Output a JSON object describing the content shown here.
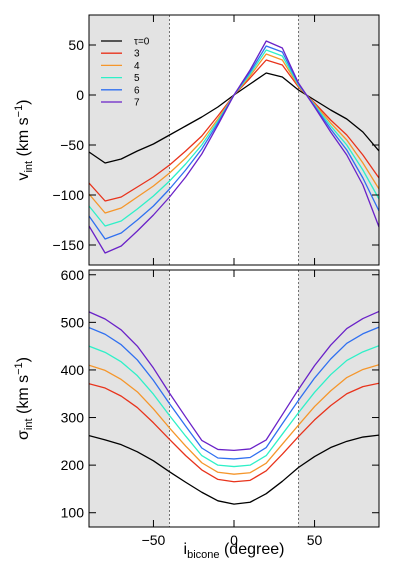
{
  "chart_data": [
    {
      "type": "line",
      "ylabel": "v",
      "ylabel_sub": "int",
      "ylabel_unit": " (km s",
      "ylabel_sup": "−1",
      "ylabel_close": ")",
      "xlim": [
        -90,
        90
      ],
      "ylim": [
        -170,
        80
      ],
      "yticks": [
        50,
        0,
        -50,
        -100,
        -150
      ],
      "ytick_labels": [
        "50",
        "0",
        "−50",
        "−100",
        "−150"
      ],
      "shade_ranges": [
        [
          -90,
          -40
        ],
        [
          40,
          90
        ]
      ],
      "dashed_x": [
        -40,
        40
      ],
      "grid": false,
      "legend_position": "top-left",
      "x": [
        -90,
        -80,
        -70,
        -60,
        -50,
        -40,
        -30,
        -20,
        -10,
        0,
        10,
        20,
        30,
        40,
        50,
        60,
        70,
        80,
        90
      ],
      "series": [
        {
          "name": "τ=0",
          "color": "#000000",
          "values": [
            -57,
            -68,
            -64,
            -56,
            -49,
            -40,
            -31,
            -22,
            -12,
            0,
            11,
            22,
            18,
            5,
            -5,
            -15,
            -24,
            -37,
            -56
          ]
        },
        {
          "name": "3",
          "color": "#e8331c",
          "values": [
            -88,
            -106,
            -102,
            -92,
            -82,
            -70,
            -56,
            -41,
            -21,
            0,
            17,
            35,
            30,
            8,
            -8,
            -25,
            -40,
            -60,
            -83
          ]
        },
        {
          "name": "4",
          "color": "#f5962b",
          "values": [
            -99,
            -118,
            -113,
            -102,
            -91,
            -78,
            -63,
            -46,
            -24,
            0,
            19,
            41,
            35,
            9,
            -9,
            -28,
            -45,
            -68,
            -94
          ]
        },
        {
          "name": "5",
          "color": "#2ef0c8",
          "values": [
            -111,
            -131,
            -126,
            -114,
            -101,
            -86,
            -69,
            -50,
            -26,
            0,
            21,
            45,
            39,
            10,
            -10,
            -31,
            -50,
            -75,
            -104
          ]
        },
        {
          "name": "6",
          "color": "#3070f0",
          "values": [
            -121,
            -144,
            -138,
            -125,
            -111,
            -94,
            -75,
            -54,
            -28,
            0,
            23,
            49,
            43,
            11,
            -11,
            -34,
            -55,
            -83,
            -116
          ]
        },
        {
          "name": "7",
          "color": "#6a22c8",
          "values": [
            -131,
            -158,
            -151,
            -136,
            -120,
            -102,
            -82,
            -59,
            -30,
            0,
            25,
            54,
            47,
            12,
            -12,
            -37,
            -60,
            -90,
            -132
          ]
        }
      ]
    },
    {
      "type": "line",
      "ylabel": "σ",
      "ylabel_sub": "int",
      "ylabel_unit": " (km s",
      "ylabel_sup": "−1",
      "ylabel_close": ")",
      "xlabel": "i",
      "xlabel_sub": "bicone",
      "xlabel_unit": " (degree)",
      "xlim": [
        -90,
        90
      ],
      "ylim": [
        70,
        610
      ],
      "yticks": [
        600,
        500,
        400,
        300,
        200,
        100
      ],
      "ytick_labels": [
        "600",
        "500",
        "400",
        "300",
        "200",
        "100"
      ],
      "xticks": [
        -50,
        0,
        50
      ],
      "xtick_labels": [
        "−50",
        "0",
        "50"
      ],
      "shade_ranges": [
        [
          -90,
          -40
        ],
        [
          40,
          90
        ]
      ],
      "dashed_x": [
        -40,
        40
      ],
      "grid": false,
      "x": [
        -90,
        -80,
        -70,
        -60,
        -50,
        -40,
        -30,
        -20,
        -10,
        0,
        10,
        20,
        30,
        40,
        50,
        60,
        70,
        80,
        90
      ],
      "series": [
        {
          "name": "τ=0",
          "color": "#000000",
          "values": [
            262,
            253,
            243,
            228,
            209,
            186,
            164,
            143,
            125,
            118,
            122,
            140,
            166,
            195,
            218,
            237,
            250,
            259,
            263
          ]
        },
        {
          "name": "3",
          "color": "#e8331c",
          "values": [
            371,
            362,
            345,
            321,
            289,
            254,
            220,
            190,
            170,
            165,
            168,
            188,
            223,
            260,
            295,
            325,
            350,
            365,
            372
          ]
        },
        {
          "name": "4",
          "color": "#f5962b",
          "values": [
            410,
            399,
            380,
            354,
            318,
            278,
            240,
            205,
            185,
            181,
            184,
            204,
            244,
            284,
            323,
            356,
            384,
            401,
            411
          ]
        },
        {
          "name": "5",
          "color": "#2ef0c8",
          "values": [
            450,
            437,
            417,
            388,
            349,
            304,
            261,
            220,
            200,
            197,
            200,
            220,
            265,
            310,
            353,
            390,
            420,
            438,
            451
          ]
        },
        {
          "name": "6",
          "color": "#3070f0",
          "values": [
            489,
            475,
            453,
            421,
            378,
            329,
            282,
            236,
            215,
            213,
            216,
            237,
            287,
            336,
            383,
            423,
            456,
            476,
            490
          ]
        },
        {
          "name": "7",
          "color": "#6a22c8",
          "values": [
            522,
            507,
            484,
            450,
            404,
            351,
            301,
            252,
            233,
            231,
            234,
            253,
            306,
            359,
            409,
            452,
            487,
            508,
            523
          ]
        }
      ]
    }
  ]
}
